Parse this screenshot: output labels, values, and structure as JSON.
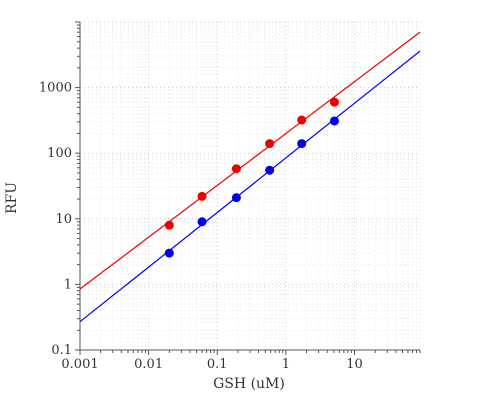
{
  "chart_data": {
    "type": "scatter",
    "title": "",
    "xlabel": "GSH (uM)",
    "ylabel": "RFU",
    "x_scale": "log",
    "y_scale": "log",
    "xlim": [
      0.001,
      90
    ],
    "ylim": [
      0.1,
      10000
    ],
    "grid": true,
    "legend": "none",
    "x_ticks": [
      {
        "value": 0.001,
        "label": "0.001"
      },
      {
        "value": 0.01,
        "label": "0.01"
      },
      {
        "value": 0.1,
        "label": "0.1"
      },
      {
        "value": 1,
        "label": "1"
      },
      {
        "value": 10,
        "label": "10"
      }
    ],
    "y_ticks": [
      {
        "value": 0.1,
        "label": "0.1"
      },
      {
        "value": 1,
        "label": "1"
      },
      {
        "value": 10,
        "label": "10"
      },
      {
        "value": 100,
        "label": "100"
      },
      {
        "value": 1000,
        "label": "1000"
      }
    ],
    "series": [
      {
        "color": "#ee0000",
        "x": [
          0.02,
          0.06,
          0.19,
          0.58,
          1.7,
          5.1
        ],
        "y": [
          8,
          22,
          58,
          140,
          320,
          600
        ],
        "fit_line": {
          "x": [
            0.001,
            90
          ],
          "y": [
            0.85,
            7000
          ]
        }
      },
      {
        "color": "#0000ee",
        "x": [
          0.02,
          0.06,
          0.19,
          0.58,
          1.7,
          5.1
        ],
        "y": [
          3,
          9,
          21,
          55,
          140,
          310
        ],
        "fit_line": {
          "x": [
            0.001,
            90
          ],
          "y": [
            0.27,
            3600
          ]
        }
      }
    ]
  }
}
